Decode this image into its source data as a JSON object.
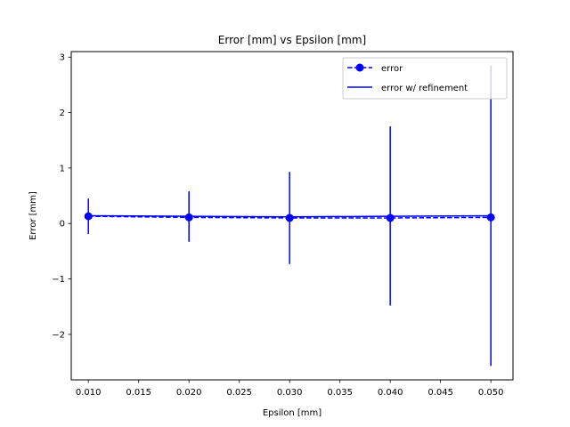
{
  "chart_data": {
    "type": "line",
    "title": "Error [mm] vs Epsilon [mm]",
    "xlabel": "Epsilon [mm]",
    "ylabel": "Error [mm]",
    "xlim": [
      0.0083,
      0.0522
    ],
    "ylim": [
      -2.82,
      3.1
    ],
    "xticks": [
      0.01,
      0.015,
      0.02,
      0.025,
      0.03,
      0.035,
      0.04,
      0.045,
      0.05
    ],
    "xtick_labels": [
      "0.010",
      "0.015",
      "0.020",
      "0.025",
      "0.030",
      "0.035",
      "0.040",
      "0.045",
      "0.050"
    ],
    "yticks": [
      -2,
      -1,
      0,
      1,
      2,
      3
    ],
    "ytick_labels": [
      "−2",
      "−1",
      "0",
      "1",
      "2",
      "3"
    ],
    "grid": false,
    "legend_position": "top-right",
    "series": [
      {
        "name": "error",
        "style": "dashed-with-markers",
        "color": "#0000ff",
        "x": [
          0.01,
          0.02,
          0.03,
          0.04,
          0.05
        ],
        "y": [
          0.13,
          0.11,
          0.1,
          0.1,
          0.11
        ],
        "yerr_low": [
          -0.19,
          -0.33,
          -0.73,
          -1.48,
          -2.57
        ],
        "yerr_high": [
          0.45,
          0.58,
          0.93,
          1.75,
          2.85
        ]
      },
      {
        "name": "error w/ refinement",
        "style": "solid",
        "color": "#0000ff",
        "x": [
          0.01,
          0.02,
          0.03,
          0.04,
          0.05
        ],
        "y": [
          0.14,
          0.13,
          0.12,
          0.13,
          0.14
        ]
      }
    ]
  }
}
